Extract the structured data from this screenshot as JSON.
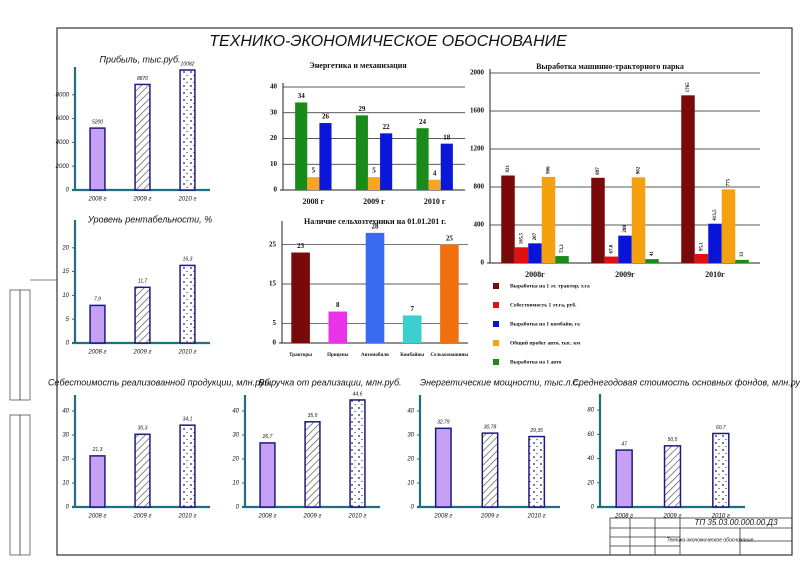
{
  "title": "ТЕХНИКО-ЭКОНОМИЧЕСКОЕ ОБОСНОВАНИЕ",
  "stamp": {
    "code": "ТП 35.03.00.000.00.Д3",
    "sheet_title": "Технико-экономическое обоснование"
  },
  "chart_data": [
    {
      "type": "bar",
      "title": "Прибыль, тыс.руб.",
      "categories": [
        "2008 г",
        "2009 г",
        "2010 г"
      ],
      "values": [
        5200,
        8870,
        10082
      ],
      "color": "#c6a0f5",
      "fills": [
        "solid",
        "hatch",
        "dots"
      ],
      "ylim": [
        0,
        10000
      ],
      "yticks": [
        0,
        2000,
        4000,
        6000,
        8000
      ]
    },
    {
      "type": "bar",
      "title": "Уровень рентабельности, %",
      "categories": [
        "2008 г",
        "2009 г",
        "2010 г"
      ],
      "values": [
        7.9,
        11.7,
        16.3
      ],
      "value_labels": [
        "7,9",
        "11,7",
        "16,3"
      ],
      "color": "#c6a0f5",
      "fills": [
        "solid",
        "hatch",
        "dots"
      ],
      "ylim": [
        0,
        25
      ],
      "yticks": [
        0,
        5,
        10,
        15,
        20
      ]
    },
    {
      "type": "grouped-bar",
      "title": "Энергетика и механизация",
      "categories": [
        "2008 г",
        "2009 г",
        "2010 г"
      ],
      "series": [
        {
          "color": "#1a8a1a",
          "values": [
            34,
            29,
            24
          ]
        },
        {
          "color": "#f5a623",
          "values": [
            5,
            5,
            4
          ]
        },
        {
          "color": "#0a17d9",
          "values": [
            26,
            22,
            18
          ]
        }
      ],
      "ylim": [
        0,
        40
      ],
      "yticks": [
        0,
        10,
        20,
        30,
        40
      ],
      "grid": true
    },
    {
      "type": "grouped-bar",
      "title": "Выработка машинно-тракторного парка",
      "categories": [
        "2008г",
        "2009г",
        "2010г"
      ],
      "series": [
        {
          "name": "Выработка на 1 эт. трактор, т.га",
          "color": "#7a0a0a",
          "values": [
            921,
            897,
            1765
          ]
        },
        {
          "name": "Себестоимость 1 эт.га, руб.",
          "color": "#e01010",
          "values": [
            165.5,
            67.8,
            95.1
          ],
          "value_labels": [
            "165,5",
            "67,8",
            "95,1"
          ]
        },
        {
          "name": "Выработка на 1 комбайн, га",
          "color": "#0a14d8",
          "values": [
            207,
            288,
            413.5
          ],
          "value_labels": [
            "207",
            "288",
            "413,5"
          ]
        },
        {
          "name": "Общий пробег авто, тыс. км",
          "color": "#f5a10f",
          "values": [
            906,
            902,
            775
          ]
        },
        {
          "name": "Выработка на 1 авто",
          "color": "#1a8a1a",
          "values": [
            73.2,
            41,
            33
          ],
          "value_labels": [
            "73,2",
            "41",
            "33"
          ]
        }
      ],
      "ylim": [
        0,
        2000
      ],
      "yticks": [
        0,
        400,
        800,
        1200,
        1600,
        2000
      ],
      "grid": true,
      "legend": "bottom"
    },
    {
      "type": "bar",
      "title": "Наличие сельхозтехники на 01.01.201 г.",
      "categories": [
        "Тракторы",
        "Прицепы",
        "Автомобили",
        "Комбайны",
        "Сельхозмашины"
      ],
      "values": [
        23,
        8,
        28,
        7,
        25
      ],
      "colors": [
        "#7a0a0a",
        "#ea32e8",
        "#3a6af0",
        "#3ccfd0",
        "#f07010"
      ],
      "ylim": [
        0,
        30
      ],
      "yticks": [
        0,
        5,
        15,
        25
      ],
      "grid": true
    },
    {
      "type": "bar",
      "title": "Себестоимость реализованной продукции, млн.руб.",
      "categories": [
        "2008 г",
        "2009 г",
        "2010 г"
      ],
      "values": [
        21.3,
        30.3,
        34.1
      ],
      "value_labels": [
        "21,3",
        "30,3",
        "34,1"
      ],
      "color": "#c6a0f5",
      "fills": [
        "solid",
        "hatch",
        "dots"
      ],
      "ylim": [
        0,
        45
      ],
      "yticks": [
        0,
        10,
        20,
        30,
        40
      ]
    },
    {
      "type": "bar",
      "title": "Выручка от реализации, млн.руб.",
      "categories": [
        "2008 г",
        "2009 г",
        "2010 г"
      ],
      "values": [
        26.7,
        35.5,
        44.6
      ],
      "value_labels": [
        "26,7",
        "35,5",
        "44,6"
      ],
      "color": "#c6a0f5",
      "fills": [
        "solid",
        "hatch",
        "dots"
      ],
      "ylim": [
        0,
        45
      ],
      "yticks": [
        0,
        10,
        20,
        30,
        40
      ]
    },
    {
      "type": "bar",
      "title": "Энергетические мощности, тыс.л.с.",
      "categories": [
        "2008 г",
        "2009 г",
        "2010 г"
      ],
      "values": [
        32.79,
        30.78,
        29.35
      ],
      "value_labels": [
        "32,79",
        "30,78",
        "29,35"
      ],
      "color": "#c6a0f5",
      "fills": [
        "solid",
        "hatch",
        "dots"
      ],
      "ylim": [
        0,
        45
      ],
      "yticks": [
        0,
        10,
        20,
        30,
        40
      ]
    },
    {
      "type": "bar",
      "title": "Среднегодовая стоимость основных фондов, млн.руб.",
      "categories": [
        "2008 г",
        "2009 г",
        "2010 г"
      ],
      "values": [
        47,
        50.5,
        60.7
      ],
      "value_labels": [
        "47",
        "50,5",
        "60,7"
      ],
      "color": "#c6a0f5",
      "fills": [
        "solid",
        "hatch",
        "dots"
      ],
      "ylim": [
        0,
        90
      ],
      "yticks": [
        0,
        20,
        40,
        60,
        80
      ]
    }
  ]
}
